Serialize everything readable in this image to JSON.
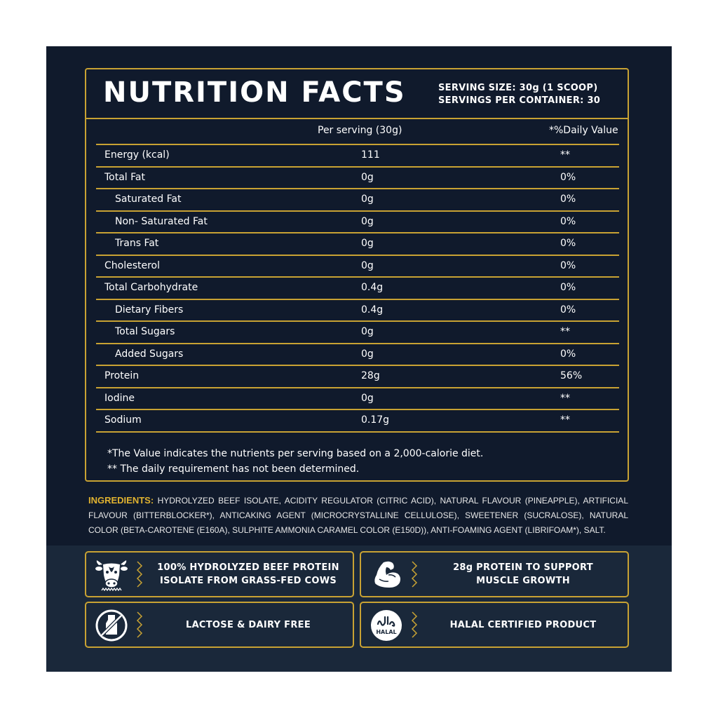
{
  "title": "NUTRITION FACTS",
  "serving_size": "SERVING SIZE: 30g (1 SCOOP)",
  "servings_per_container": "SERVINGS PER CONTAINER: 30",
  "columns": {
    "per_serving": "Per serving (30g)",
    "daily_value": "*%Daily Value"
  },
  "rows": [
    {
      "name": "Energy (kcal)",
      "amount": "111",
      "dv": "**",
      "indent": false
    },
    {
      "name": "Total Fat",
      "amount": "0g",
      "dv": "0%",
      "indent": false
    },
    {
      "name": "Saturated Fat",
      "amount": "0g",
      "dv": "0%",
      "indent": true
    },
    {
      "name": "Non- Saturated Fat",
      "amount": "0g",
      "dv": "0%",
      "indent": true
    },
    {
      "name": "Trans Fat",
      "amount": "0g",
      "dv": "0%",
      "indent": true
    },
    {
      "name": "Cholesterol",
      "amount": "0g",
      "dv": "0%",
      "indent": false
    },
    {
      "name": "Total Carbohydrate",
      "amount": "0.4g",
      "dv": "0%",
      "indent": false
    },
    {
      "name": "Dietary Fibers",
      "amount": "0.4g",
      "dv": "0%",
      "indent": true
    },
    {
      "name": "Total Sugars",
      "amount": "0g",
      "dv": "**",
      "indent": true
    },
    {
      "name": "Added Sugars",
      "amount": "0g",
      "dv": "0%",
      "indent": true
    },
    {
      "name": "Protein",
      "amount": "28g",
      "dv": "56%",
      "indent": false
    },
    {
      "name": "Iodine",
      "amount": "0g",
      "dv": "**",
      "indent": false
    },
    {
      "name": "Sodium",
      "amount": "0.17g",
      "dv": "**",
      "indent": false
    }
  ],
  "footnotes": [
    "*The Value indicates the nutrients per serving based on a 2,000-calorie diet.",
    "** The daily requirement has not been determined."
  ],
  "ingredients": {
    "label": "INGREDIENTS:",
    "text": "HYDROLYZED BEEF ISOLATE, ACIDITY REGULATOR (CITRIC ACID), NATURAL FLAVOUR (PINEAPPLE), ARTIFICIAL FLAVOUR (BITTERBLOCKER*), ANTICAKING AGENT (MICROCRYSTALLINE CELLULOSE), SWEETENER (SUCRALOSE), NATURAL COLOR (BETA-CAROTENE (E160A), SULPHITE AMMONIA CARAMEL COLOR (E150D)), ANTI-FOAMING AGENT (LIBRIFOAM*), SALT."
  },
  "badges": [
    {
      "icon": "cow-icon",
      "line1": "100% HYDROLYZED BEEF PROTEIN",
      "line2": "ISOLATE FROM GRASS-FED COWS"
    },
    {
      "icon": "flexed-arm-icon",
      "line1": "28g PROTEIN TO SUPPORT",
      "line2": "MUSCLE GROWTH"
    },
    {
      "icon": "no-milk-icon",
      "line1": "LACTOSE & DAIRY FREE",
      "line2": ""
    },
    {
      "icon": "halal-icon",
      "line1": "HALAL CERTIFIED PRODUCT",
      "line2": "",
      "icon_text": "HALAL"
    }
  ],
  "colors": {
    "background": "#101a2c",
    "lower_band": "#1a283a",
    "accent": "#c8a233",
    "ingredients_label": "#e0b230",
    "text": "#ffffff"
  }
}
